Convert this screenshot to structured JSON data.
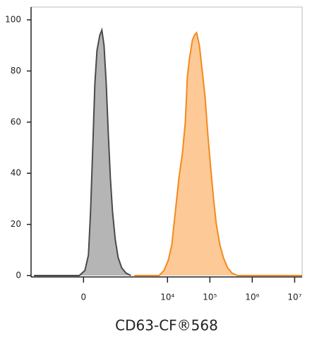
{
  "chart_data": {
    "type": "histogram-overlay",
    "x_label": "CD63-CF®568",
    "xscale": "biexponential",
    "xlim": [
      -1800,
      15000000
    ],
    "xticks": [
      0,
      {
        "value": 10000,
        "label": "10⁴"
      },
      {
        "value": 100000,
        "label": "10⁵"
      },
      {
        "value": 1000000,
        "label": "10⁶"
      },
      {
        "value": 10000000,
        "label": "10⁷"
      }
    ],
    "ylim": [
      0,
      105
    ],
    "yticks": [
      0,
      20,
      40,
      60,
      80,
      100
    ],
    "series": [
      {
        "color": "#4a4a4a",
        "fill": "#b5b5b5",
        "x": [
          -1528,
          -48,
          16,
          57,
          82,
          109,
          137,
          167,
          210,
          245,
          284,
          328,
          375,
          426,
          483,
          568,
          669,
          817,
          1035,
          1359
        ],
        "values": [
          0,
          0,
          2,
          8,
          25,
          50,
          75,
          88,
          94,
          96,
          90,
          75,
          55,
          38,
          25,
          14,
          7,
          3,
          1,
          0
        ]
      },
      {
        "color": "#f28a1e",
        "fill": "#fdc997",
        "x": [
          1649,
          6350,
          8300,
          10450,
          12670,
          15340,
          18580,
          22530,
          26270,
          29470,
          33080,
          38580,
          43260,
          48590,
          56640,
          66040,
          76910,
          89770,
          104600,
          121900,
          142100,
          172200,
          208700,
          262800,
          330900,
          449600,
          15000000
        ],
        "values": [
          0,
          0,
          2,
          6,
          12,
          25,
          38,
          48,
          60,
          78,
          85,
          92,
          94,
          95,
          90,
          80,
          70,
          55,
          42,
          30,
          20,
          12,
          7,
          3,
          1,
          0,
          0
        ]
      }
    ]
  }
}
